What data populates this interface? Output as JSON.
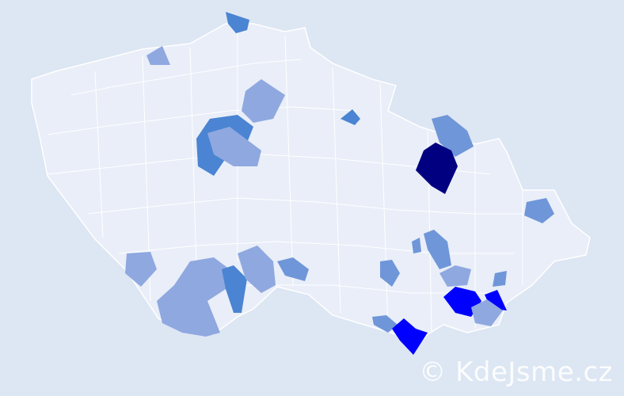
{
  "map": {
    "colors": {
      "background": "#dde6f3",
      "region_default": "#e9eef8",
      "region_border": "#ffffff",
      "level_1": "#8fa8e0",
      "level_2": "#6f96d8",
      "level_3": "#4a84d2",
      "level_4": "#0000ff",
      "level_5": "#000080"
    }
  },
  "watermark": "© KdeJsme.cz"
}
